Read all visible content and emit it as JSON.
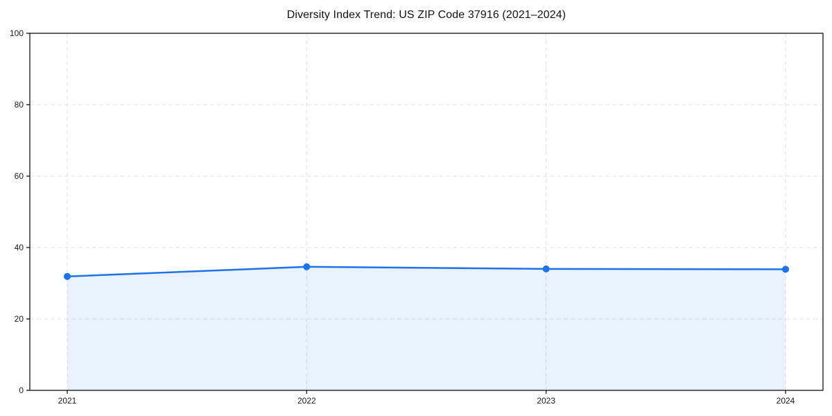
{
  "chart_data": {
    "type": "line",
    "title": "Diversity Index Trend: US ZIP Code 37916 (2021–2024)",
    "categories": [
      "2021",
      "2022",
      "2023",
      "2024"
    ],
    "values": [
      31.9,
      34.6,
      34.0,
      33.9
    ],
    "xlabel": "",
    "ylabel": "",
    "ylim": [
      0,
      100
    ],
    "yticks": [
      0,
      20,
      40,
      60,
      80,
      100
    ],
    "legend": "none",
    "grid": {
      "show": true,
      "style": "dashed",
      "color": "#e2e2e2"
    },
    "styles": {
      "line_color": "#1a73e8",
      "marker_color": "#1a73e8",
      "fill_color": "rgba(26,115,232,0.10)",
      "spine_color": "#000000",
      "background": "#ffffff"
    }
  }
}
